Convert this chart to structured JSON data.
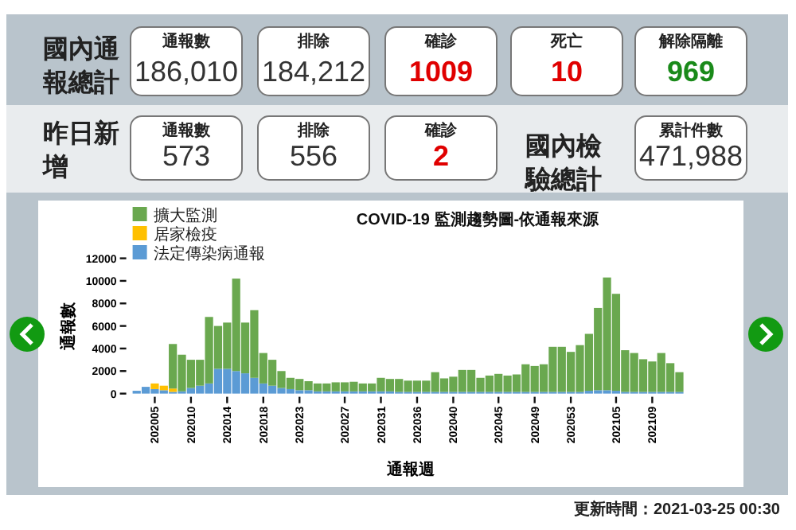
{
  "chart_data": [
    {
      "type": "other",
      "annotations": [
        "國內通報總計",
        "通報數",
        "186,010",
        "排除",
        "184,212",
        "確診",
        "1009",
        "死亡",
        "10",
        "解除隔離",
        "969",
        "昨日新增",
        "通報數",
        "573",
        "排除",
        "556",
        "確診",
        "2",
        "國內檢驗總計",
        "累計件數",
        "471,988",
        "更新時間：2021-03-25 00:30"
      ]
    },
    {
      "type": "bar",
      "title": "COVID-19 監測趨勢圖-依通報來源",
      "xlabel": "通報週",
      "ylabel": "通報數",
      "stacked": true,
      "legend": "top left",
      "ylim": [
        0,
        12000
      ],
      "yticks": [
        0,
        2000,
        4000,
        6000,
        8000,
        10000,
        12000
      ],
      "categories": [
        null,
        null,
        "202005",
        null,
        null,
        null,
        "202010",
        null,
        null,
        null,
        "202014",
        null,
        null,
        null,
        "202018",
        null,
        null,
        null,
        "202023",
        null,
        null,
        null,
        null,
        "202027",
        null,
        null,
        null,
        "202031",
        null,
        null,
        null,
        "202036",
        null,
        null,
        null,
        "202040",
        null,
        null,
        null,
        null,
        "202045",
        null,
        null,
        null,
        "202049",
        null,
        null,
        null,
        "202053",
        null,
        null,
        null,
        null,
        "202105",
        null,
        null,
        null,
        "202109",
        null,
        null,
        null
      ],
      "series": [
        {
          "name": "法定傳染病通報",
          "color": "#5b9bd5",
          "values": [
            250,
            600,
            400,
            300,
            150,
            200,
            500,
            700,
            900,
            2200,
            2200,
            2000,
            1800,
            1400,
            900,
            700,
            500,
            400,
            300,
            300,
            200,
            200,
            200,
            200,
            200,
            200,
            200,
            200,
            200,
            150,
            150,
            150,
            150,
            150,
            150,
            150,
            150,
            150,
            150,
            150,
            150,
            150,
            150,
            150,
            150,
            150,
            150,
            150,
            150,
            150,
            250,
            300,
            300,
            250,
            150,
            150,
            150,
            150,
            150,
            150,
            150
          ]
        },
        {
          "name": "居家檢疫",
          "color": "#ffc000",
          "values": [
            0,
            0,
            500,
            400,
            300,
            0,
            0,
            0,
            0,
            0,
            0,
            0,
            0,
            0,
            0,
            0,
            0,
            0,
            0,
            0,
            0,
            0,
            0,
            0,
            0,
            0,
            0,
            0,
            0,
            0,
            0,
            0,
            0,
            0,
            0,
            0,
            0,
            0,
            0,
            0,
            0,
            0,
            0,
            0,
            0,
            0,
            0,
            0,
            0,
            0,
            0,
            0,
            0,
            0,
            0,
            0,
            0,
            0,
            0,
            0,
            0
          ]
        },
        {
          "name": "擴大監測",
          "color": "#6aa84f",
          "values": [
            0,
            0,
            0,
            0,
            3950,
            3250,
            2500,
            2300,
            5900,
            3800,
            4100,
            8200,
            4500,
            6000,
            2700,
            2300,
            1500,
            1000,
            1000,
            800,
            700,
            700,
            800,
            800,
            850,
            700,
            700,
            1200,
            1100,
            1150,
            1000,
            1000,
            1000,
            1750,
            1200,
            1350,
            1950,
            1950,
            1250,
            1450,
            1600,
            1450,
            1550,
            2450,
            2300,
            2450,
            4000,
            4000,
            3550,
            4150,
            5050,
            7300,
            10000,
            8600,
            3700,
            3450,
            2900,
            2700,
            3450,
            2550,
            1750
          ]
        }
      ]
    }
  ]
}
